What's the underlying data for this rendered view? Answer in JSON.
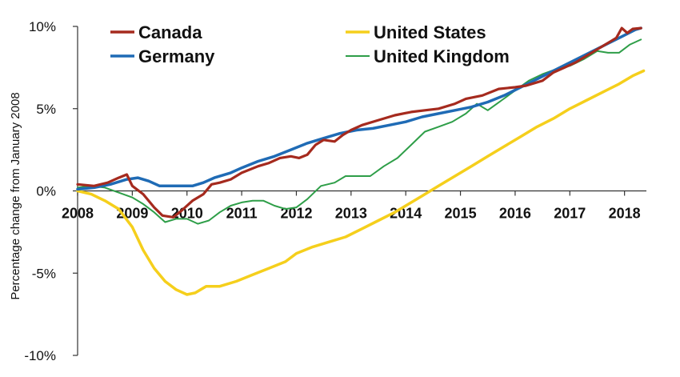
{
  "chart_data": {
    "type": "line",
    "title": "",
    "xlabel": "",
    "ylabel": "Percentage change from January 2008",
    "xlim": [
      2008,
      2018.4
    ],
    "ylim": [
      -10,
      10
    ],
    "x_ticks": [
      "2008",
      "2009",
      "2010",
      "2011",
      "2012",
      "2013",
      "2014",
      "2015",
      "2016",
      "2017",
      "2018"
    ],
    "y_ticks": [
      "10%",
      "5%",
      "0%",
      "-5%",
      "-10%"
    ],
    "grid": false,
    "legend": "top, two columns",
    "series": [
      {
        "name": "Canada",
        "color": "#a52a1e",
        "points": [
          [
            2008.0,
            0.4
          ],
          [
            2008.3,
            0.3
          ],
          [
            2008.55,
            0.5
          ],
          [
            2008.75,
            0.8
          ],
          [
            2008.9,
            1.0
          ],
          [
            2009.0,
            0.3
          ],
          [
            2009.2,
            -0.2
          ],
          [
            2009.4,
            -1.0
          ],
          [
            2009.55,
            -1.5
          ],
          [
            2009.75,
            -1.6
          ],
          [
            2009.9,
            -1.2
          ],
          [
            2010.1,
            -0.6
          ],
          [
            2010.3,
            -0.2
          ],
          [
            2010.45,
            0.4
          ],
          [
            2010.6,
            0.5
          ],
          [
            2010.8,
            0.7
          ],
          [
            2011.0,
            1.1
          ],
          [
            2011.3,
            1.5
          ],
          [
            2011.5,
            1.7
          ],
          [
            2011.7,
            2.0
          ],
          [
            2011.9,
            2.1
          ],
          [
            2012.05,
            2.0
          ],
          [
            2012.2,
            2.2
          ],
          [
            2012.35,
            2.8
          ],
          [
            2012.5,
            3.1
          ],
          [
            2012.7,
            3.0
          ],
          [
            2012.85,
            3.4
          ],
          [
            2013.0,
            3.7
          ],
          [
            2013.2,
            4.0
          ],
          [
            2013.5,
            4.3
          ],
          [
            2013.8,
            4.6
          ],
          [
            2014.1,
            4.8
          ],
          [
            2014.35,
            4.9
          ],
          [
            2014.6,
            5.0
          ],
          [
            2014.9,
            5.3
          ],
          [
            2015.1,
            5.6
          ],
          [
            2015.4,
            5.8
          ],
          [
            2015.7,
            6.2
          ],
          [
            2016.0,
            6.3
          ],
          [
            2016.2,
            6.4
          ],
          [
            2016.5,
            6.7
          ],
          [
            2016.7,
            7.2
          ],
          [
            2016.9,
            7.5
          ],
          [
            2017.1,
            7.8
          ],
          [
            2017.4,
            8.4
          ],
          [
            2017.65,
            8.9
          ],
          [
            2017.85,
            9.3
          ],
          [
            2017.95,
            9.9
          ],
          [
            2018.05,
            9.6
          ],
          [
            2018.15,
            9.85
          ],
          [
            2018.3,
            9.9
          ]
        ]
      },
      {
        "name": "United States",
        "color": "#f5cf1c",
        "points": [
          [
            2008.0,
            0.0
          ],
          [
            2008.25,
            -0.2
          ],
          [
            2008.5,
            -0.6
          ],
          [
            2008.75,
            -1.1
          ],
          [
            2009.0,
            -2.2
          ],
          [
            2009.2,
            -3.6
          ],
          [
            2009.4,
            -4.7
          ],
          [
            2009.6,
            -5.5
          ],
          [
            2009.8,
            -6.0
          ],
          [
            2010.0,
            -6.3
          ],
          [
            2010.15,
            -6.2
          ],
          [
            2010.35,
            -5.8
          ],
          [
            2010.6,
            -5.8
          ],
          [
            2010.9,
            -5.5
          ],
          [
            2011.2,
            -5.1
          ],
          [
            2011.5,
            -4.7
          ],
          [
            2011.8,
            -4.3
          ],
          [
            2012.0,
            -3.8
          ],
          [
            2012.3,
            -3.4
          ],
          [
            2012.6,
            -3.1
          ],
          [
            2012.9,
            -2.8
          ],
          [
            2013.2,
            -2.3
          ],
          [
            2013.5,
            -1.8
          ],
          [
            2013.8,
            -1.3
          ],
          [
            2014.0,
            -0.9
          ],
          [
            2014.3,
            -0.3
          ],
          [
            2014.6,
            0.3
          ],
          [
            2014.9,
            0.9
          ],
          [
            2015.2,
            1.5
          ],
          [
            2015.5,
            2.1
          ],
          [
            2015.8,
            2.7
          ],
          [
            2016.1,
            3.3
          ],
          [
            2016.4,
            3.9
          ],
          [
            2016.7,
            4.4
          ],
          [
            2017.0,
            5.0
          ],
          [
            2017.3,
            5.5
          ],
          [
            2017.6,
            6.0
          ],
          [
            2017.9,
            6.5
          ],
          [
            2018.15,
            7.0
          ],
          [
            2018.35,
            7.3
          ]
        ]
      },
      {
        "name": "Germany",
        "color": "#1f6bb5",
        "points": [
          [
            2008.0,
            0.1
          ],
          [
            2008.3,
            0.2
          ],
          [
            2008.6,
            0.4
          ],
          [
            2008.9,
            0.7
          ],
          [
            2009.1,
            0.8
          ],
          [
            2009.3,
            0.6
          ],
          [
            2009.5,
            0.3
          ],
          [
            2009.7,
            0.3
          ],
          [
            2009.9,
            0.3
          ],
          [
            2010.1,
            0.3
          ],
          [
            2010.3,
            0.5
          ],
          [
            2010.5,
            0.8
          ],
          [
            2010.8,
            1.1
          ],
          [
            2011.0,
            1.4
          ],
          [
            2011.3,
            1.8
          ],
          [
            2011.6,
            2.1
          ],
          [
            2011.9,
            2.5
          ],
          [
            2012.2,
            2.9
          ],
          [
            2012.5,
            3.2
          ],
          [
            2012.8,
            3.5
          ],
          [
            2013.1,
            3.7
          ],
          [
            2013.4,
            3.8
          ],
          [
            2013.7,
            4.0
          ],
          [
            2014.0,
            4.2
          ],
          [
            2014.3,
            4.5
          ],
          [
            2014.6,
            4.7
          ],
          [
            2014.9,
            4.9
          ],
          [
            2015.2,
            5.1
          ],
          [
            2015.5,
            5.4
          ],
          [
            2015.8,
            5.8
          ],
          [
            2016.1,
            6.3
          ],
          [
            2016.4,
            6.8
          ],
          [
            2016.7,
            7.3
          ],
          [
            2017.0,
            7.8
          ],
          [
            2017.3,
            8.3
          ],
          [
            2017.6,
            8.8
          ],
          [
            2017.9,
            9.3
          ],
          [
            2018.2,
            9.8
          ],
          [
            2018.3,
            9.9
          ]
        ]
      },
      {
        "name": "United Kingdom",
        "color": "#2e9e48",
        "points": [
          [
            2008.0,
            0.2
          ],
          [
            2008.25,
            0.3
          ],
          [
            2008.5,
            0.2
          ],
          [
            2008.75,
            -0.1
          ],
          [
            2009.0,
            -0.4
          ],
          [
            2009.2,
            -0.8
          ],
          [
            2009.4,
            -1.3
          ],
          [
            2009.6,
            -1.9
          ],
          [
            2009.8,
            -1.7
          ],
          [
            2010.0,
            -1.7
          ],
          [
            2010.2,
            -2.0
          ],
          [
            2010.4,
            -1.8
          ],
          [
            2010.6,
            -1.3
          ],
          [
            2010.8,
            -0.9
          ],
          [
            2011.0,
            -0.7
          ],
          [
            2011.2,
            -0.6
          ],
          [
            2011.4,
            -0.6
          ],
          [
            2011.6,
            -0.9
          ],
          [
            2011.8,
            -1.1
          ],
          [
            2012.0,
            -1.0
          ],
          [
            2012.2,
            -0.5
          ],
          [
            2012.45,
            0.3
          ],
          [
            2012.7,
            0.5
          ],
          [
            2012.9,
            0.9
          ],
          [
            2013.1,
            0.9
          ],
          [
            2013.35,
            0.9
          ],
          [
            2013.6,
            1.5
          ],
          [
            2013.85,
            2.0
          ],
          [
            2014.1,
            2.8
          ],
          [
            2014.35,
            3.6
          ],
          [
            2014.6,
            3.9
          ],
          [
            2014.85,
            4.2
          ],
          [
            2015.1,
            4.7
          ],
          [
            2015.3,
            5.3
          ],
          [
            2015.5,
            4.9
          ],
          [
            2015.75,
            5.5
          ],
          [
            2016.0,
            6.1
          ],
          [
            2016.25,
            6.7
          ],
          [
            2016.5,
            7.1
          ],
          [
            2016.75,
            7.4
          ],
          [
            2017.0,
            7.6
          ],
          [
            2017.25,
            8.0
          ],
          [
            2017.5,
            8.5
          ],
          [
            2017.7,
            8.4
          ],
          [
            2017.9,
            8.4
          ],
          [
            2018.1,
            8.9
          ],
          [
            2018.3,
            9.2
          ]
        ]
      }
    ]
  }
}
